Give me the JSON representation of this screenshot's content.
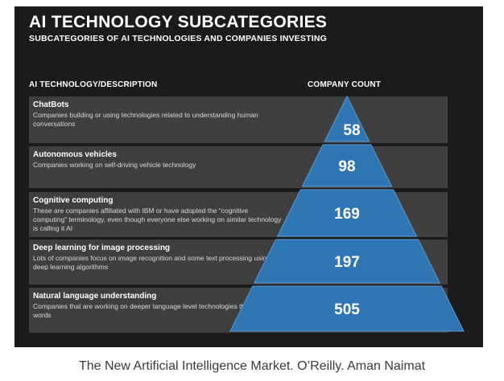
{
  "chart_data": {
    "type": "table",
    "title": "AI TECHNOLOGY SUBCATEGORIES",
    "subtitle": "SUBCATEGORIES OF AI TECHNOLOGIES AND COMPANIES INVESTING",
    "columns": [
      "AI TECHNOLOGY/DESCRIPTION",
      "COMPANY COUNT"
    ],
    "rows": [
      {
        "name": "ChatBots",
        "description": "Companies building or using technologies related to understanding human conversations",
        "count": 58
      },
      {
        "name": "Autonomous vehicles",
        "description": "Companies working on self-driving vehicle technology",
        "count": 98
      },
      {
        "name": "Cognitive computing",
        "description": "These are companies affiliated with IBM or have adopted the “cognitive computing” terminology, even though everyone else working on similar technology is calling it AI",
        "count": 169
      },
      {
        "name": "Deep learning for image processing",
        "description": "Lots of companies focus on image recognition and some text processing using deep learning algorithms",
        "count": 197
      },
      {
        "name": "Natural language understanding",
        "description": "Companies that are working on deeper language level technologies than counting words",
        "count": 505
      }
    ]
  },
  "colors": {
    "background": "#1b1b1b",
    "row_band": "#3f3f3f",
    "pyramid_fill": "#2f74b3",
    "pyramid_edge": "#5b9bd5"
  },
  "caption": "The New Artificial Intelligence Market. O’Reilly. Aman Naimat"
}
